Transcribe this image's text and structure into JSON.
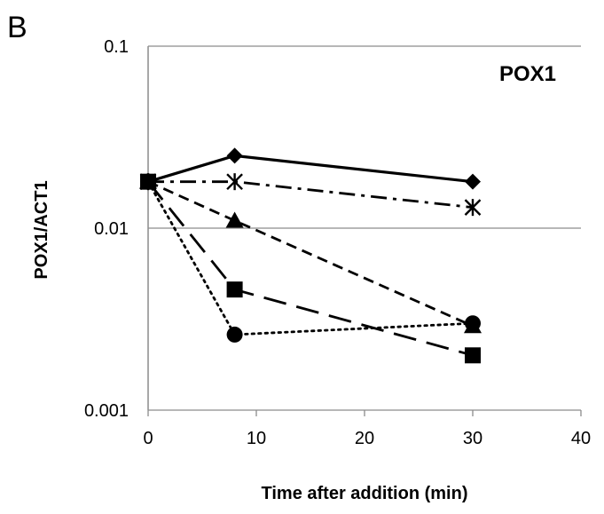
{
  "panel_label": "B",
  "chart_data": {
    "type": "line",
    "title": "POX1",
    "xlabel": "Time after addition (min)",
    "ylabel": "POX1/ACT1",
    "xlim": [
      0,
      40
    ],
    "ylim": [
      0.001,
      0.1
    ],
    "y_scale": "log",
    "x_ticks": [
      0,
      10,
      20,
      30,
      40
    ],
    "x_tick_labels": [
      "0",
      "10",
      "20",
      "30",
      "40"
    ],
    "y_ticks": [
      0.001,
      0.01,
      0.1
    ],
    "y_tick_labels": [
      "0.001",
      "0.01",
      "0.1"
    ],
    "grid": "horizontal",
    "legend": "none",
    "series": [
      {
        "marker": "diamond",
        "line_style": "solid",
        "color": "#000000",
        "x": [
          0,
          8,
          30
        ],
        "y": [
          0.018,
          0.025,
          0.018
        ]
      },
      {
        "marker": "asterisk",
        "line_style": "dash-dot",
        "color": "#000000",
        "x": [
          0,
          8,
          30
        ],
        "y": [
          0.018,
          0.018,
          0.013
        ]
      },
      {
        "marker": "triangle",
        "line_style": "short-dash",
        "color": "#000000",
        "x": [
          0,
          8,
          30
        ],
        "y": [
          0.018,
          0.011,
          0.0029
        ]
      },
      {
        "marker": "square",
        "line_style": "long-dash",
        "color": "#000000",
        "x": [
          0,
          8,
          30
        ],
        "y": [
          0.018,
          0.0046,
          0.002
        ]
      },
      {
        "marker": "circle",
        "line_style": "dotted",
        "color": "#000000",
        "x": [
          0,
          8,
          30
        ],
        "y": [
          0.018,
          0.0026,
          0.003
        ]
      }
    ]
  }
}
